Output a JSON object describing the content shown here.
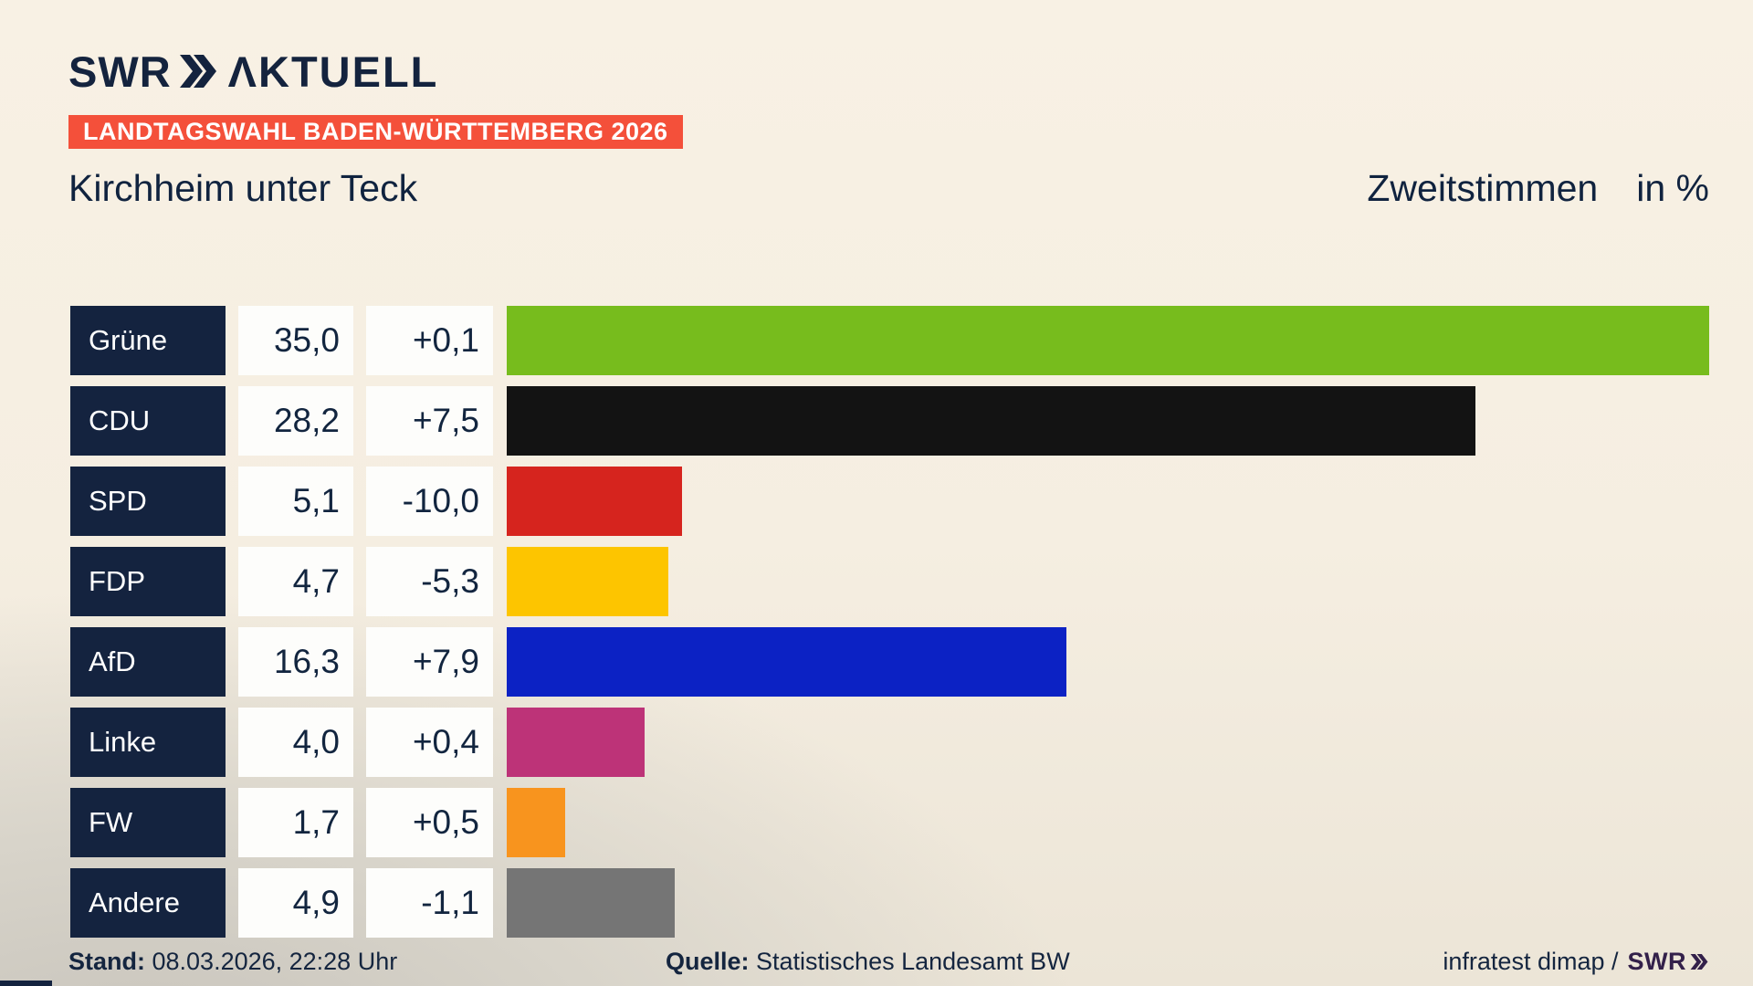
{
  "header": {
    "brand": "SWR",
    "brand_suffix": "ΛKTUELL",
    "banner": "LANDTAGSWAHL BADEN-WÜRTTEMBERG 2026"
  },
  "title": {
    "left": "Kirchheim unter Teck",
    "right_label": "Zweitstimmen",
    "right_unit": "in %"
  },
  "chart_data": {
    "type": "bar",
    "title": "Kirchheim unter Teck — Zweitstimmen in %",
    "orientation": "horizontal",
    "xlim": [
      0,
      35
    ],
    "max_value": 35.0,
    "categories": [
      "Grüne",
      "CDU",
      "SPD",
      "FDP",
      "AfD",
      "Linke",
      "FW",
      "Andere"
    ],
    "values": [
      35.0,
      28.2,
      5.1,
      4.7,
      16.3,
      4.0,
      1.7,
      4.9
    ],
    "changes": [
      0.1,
      7.5,
      -10.0,
      -5.3,
      7.9,
      0.4,
      0.5,
      -1.1
    ],
    "rows": [
      {
        "party": "Grüne",
        "value": "35,0",
        "change": "+0,1",
        "color": "#77bc1d",
        "pct": 35.0
      },
      {
        "party": "CDU",
        "value": "28,2",
        "change": "+7,5",
        "color": "#131313",
        "pct": 28.2
      },
      {
        "party": "SPD",
        "value": "5,1",
        "change": "-10,0",
        "color": "#d6241e",
        "pct": 5.1
      },
      {
        "party": "FDP",
        "value": "4,7",
        "change": "-5,3",
        "color": "#fdc500",
        "pct": 4.7
      },
      {
        "party": "AfD",
        "value": "16,3",
        "change": "+7,9",
        "color": "#0c22c4",
        "pct": 16.3
      },
      {
        "party": "Linke",
        "value": "4,0",
        "change": "+0,4",
        "color": "#bd3378",
        "pct": 4.0
      },
      {
        "party": "FW",
        "value": "1,7",
        "change": "+0,5",
        "color": "#f8941e",
        "pct": 1.7
      },
      {
        "party": "Andere",
        "value": "4,9",
        "change": "-1,1",
        "color": "#757575",
        "pct": 4.9
      }
    ]
  },
  "footer": {
    "stand_label": "Stand:",
    "stand_value": "08.03.2026, 22:28 Uhr",
    "quelle_label": "Quelle:",
    "quelle_value": "Statistisches Landesamt BW",
    "credit": "infratest dimap /",
    "credit_brand": "SWR"
  },
  "colors": {
    "background_top": "#f8f1e4",
    "background_bottom_left": "#c6c2ba",
    "banner_red": "#f4503a",
    "navy": "#14233f",
    "box_white": "#fdfdfb"
  }
}
